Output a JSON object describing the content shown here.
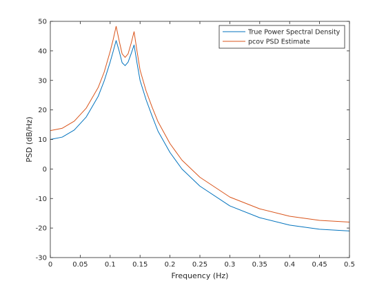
{
  "chart_data": {
    "type": "line",
    "xlabel": "Frequency (Hz)",
    "ylabel": "PSD (dB/Hz)",
    "xlim": [
      0,
      0.5
    ],
    "ylim": [
      -30,
      50
    ],
    "x_ticks": [
      0,
      0.05,
      0.1,
      0.15,
      0.2,
      0.25,
      0.3,
      0.35,
      0.4,
      0.45,
      0.5
    ],
    "x_tick_labels": [
      "0",
      "0.05",
      "0.1",
      "0.15",
      "0.2",
      "0.25",
      "0.3",
      "0.35",
      "0.4",
      "0.45",
      "0.5"
    ],
    "y_ticks": [
      -30,
      -20,
      -10,
      0,
      10,
      20,
      30,
      40,
      50
    ],
    "y_tick_labels": [
      "-30",
      "-20",
      "-10",
      "0",
      "10",
      "20",
      "30",
      "40",
      "50"
    ],
    "grid": false,
    "legend_position": "top-right",
    "series": [
      {
        "name": "True Power Spectral Density",
        "color": "#0072BD",
        "x": [
          0,
          0.02,
          0.04,
          0.06,
          0.08,
          0.09,
          0.1,
          0.105,
          0.11,
          0.115,
          0.12,
          0.125,
          0.13,
          0.135,
          0.14,
          0.145,
          0.15,
          0.16,
          0.17,
          0.18,
          0.2,
          0.22,
          0.25,
          0.3,
          0.35,
          0.4,
          0.45,
          0.5
        ],
        "values": [
          10,
          10.8,
          13.2,
          17.6,
          24.6,
          29.8,
          36.2,
          39.8,
          43.5,
          40.0,
          36.0,
          35.0,
          36.2,
          39.0,
          42.0,
          35.8,
          30.0,
          23.5,
          18.0,
          12.8,
          5.6,
          0.0,
          -5.8,
          -12.5,
          -16.5,
          -19.0,
          -20.4,
          -21.0
        ]
      },
      {
        "name": "pcov PSD Estimate",
        "color": "#D95319",
        "x": [
          0,
          0.02,
          0.04,
          0.06,
          0.08,
          0.09,
          0.1,
          0.105,
          0.11,
          0.115,
          0.12,
          0.125,
          0.13,
          0.135,
          0.14,
          0.145,
          0.15,
          0.16,
          0.17,
          0.18,
          0.2,
          0.22,
          0.25,
          0.3,
          0.35,
          0.4,
          0.45,
          0.5
        ],
        "values": [
          13,
          13.8,
          16.2,
          20.6,
          27.6,
          32.8,
          39.8,
          43.8,
          48.3,
          43.5,
          39.0,
          37.8,
          39.0,
          42.5,
          46.5,
          39.8,
          33.5,
          26.5,
          21.0,
          16.0,
          8.6,
          3.0,
          -2.8,
          -9.5,
          -13.5,
          -16.0,
          -17.4,
          -18.0
        ]
      }
    ]
  }
}
